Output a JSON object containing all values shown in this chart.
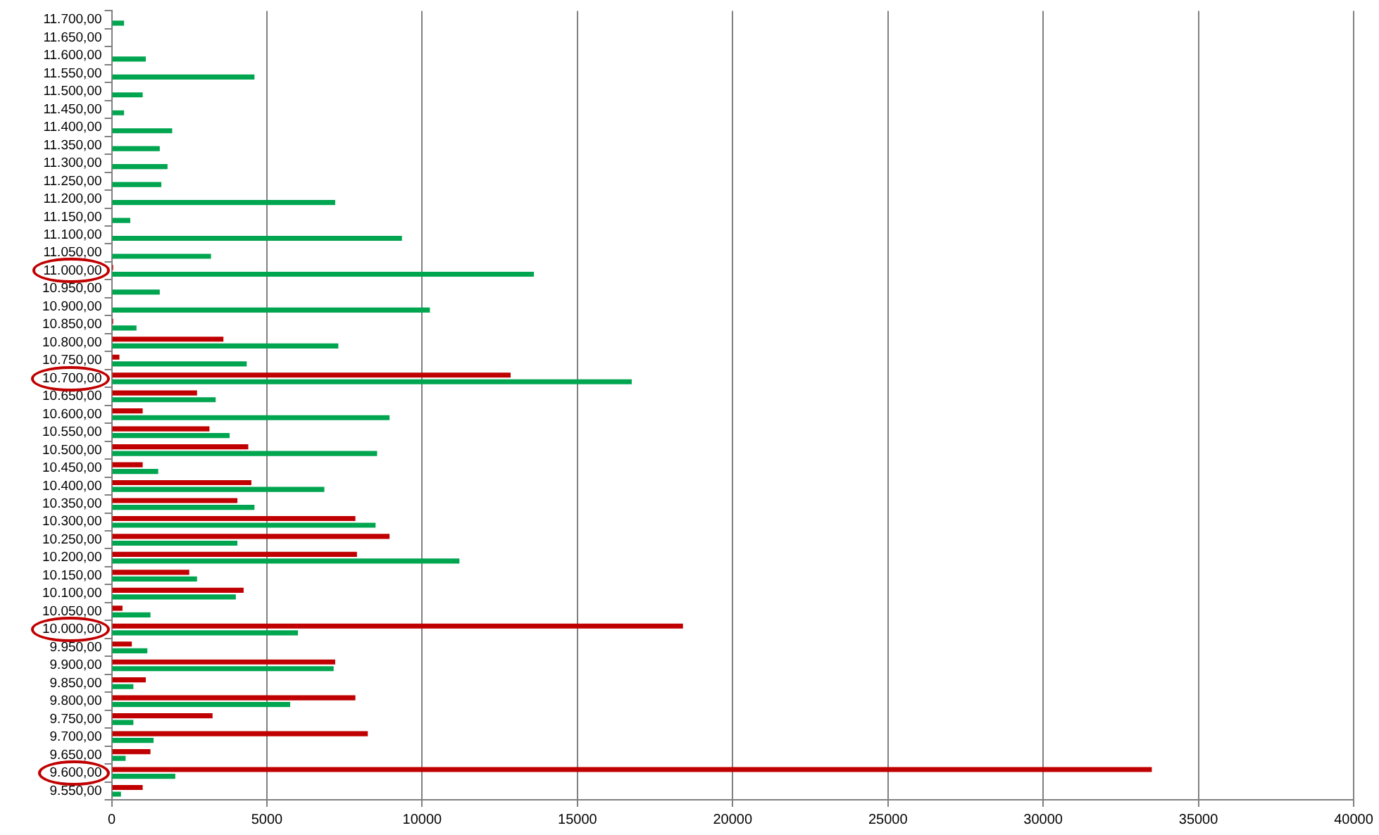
{
  "chart_data": {
    "type": "bar",
    "orientation": "horizontal",
    "categories": [
      "11.700,00",
      "11.650,00",
      "11.600,00",
      "11.550,00",
      "11.500,00",
      "11.450,00",
      "11.400,00",
      "11.350,00",
      "11.300,00",
      "11.250,00",
      "11.200,00",
      "11.150,00",
      "11.100,00",
      "11.050,00",
      "11.000,00",
      "10.950,00",
      "10.900,00",
      "10.850,00",
      "10.800,00",
      "10.750,00",
      "10.700,00",
      "10.650,00",
      "10.600,00",
      "10.550,00",
      "10.500,00",
      "10.450,00",
      "10.400,00",
      "10.350,00",
      "10.300,00",
      "10.250,00",
      "10.200,00",
      "10.150,00",
      "10.100,00",
      "10.050,00",
      "10.000,00",
      "9.950,00",
      "9.900,00",
      "9.850,00",
      "9.800,00",
      "9.750,00",
      "9.700,00",
      "9.650,00",
      "9.600,00",
      "9.550,00"
    ],
    "series": [
      {
        "color": "#c00000",
        "values": [
          0,
          0,
          0,
          0,
          0,
          0,
          0,
          0,
          0,
          0,
          0,
          0,
          0,
          0,
          50,
          0,
          0,
          50,
          3600,
          250,
          12850,
          2750,
          1000,
          3150,
          4400,
          1000,
          4500,
          4050,
          7850,
          8950,
          7900,
          2500,
          4250,
          350,
          18400,
          650,
          7200,
          1100,
          7850,
          3250,
          8250,
          1250,
          33500,
          1000
        ]
      },
      {
        "color": "#00a550",
        "values": [
          400,
          0,
          1100,
          4600,
          1000,
          400,
          1950,
          1550,
          1800,
          1600,
          7200,
          600,
          9350,
          3200,
          13600,
          1550,
          10250,
          800,
          7300,
          4350,
          16750,
          3350,
          8950,
          3800,
          8550,
          1500,
          6850,
          4600,
          8500,
          4050,
          11200,
          2750,
          4000,
          1250,
          6000,
          1150,
          7150,
          700,
          5750,
          700,
          1350,
          450,
          2050,
          300
        ]
      }
    ],
    "xlim": [
      0,
      40000
    ],
    "xticks": [
      0,
      5000,
      10000,
      15000,
      20000,
      25000,
      30000,
      35000,
      40000
    ],
    "grid": "x",
    "legend": false
  }
}
